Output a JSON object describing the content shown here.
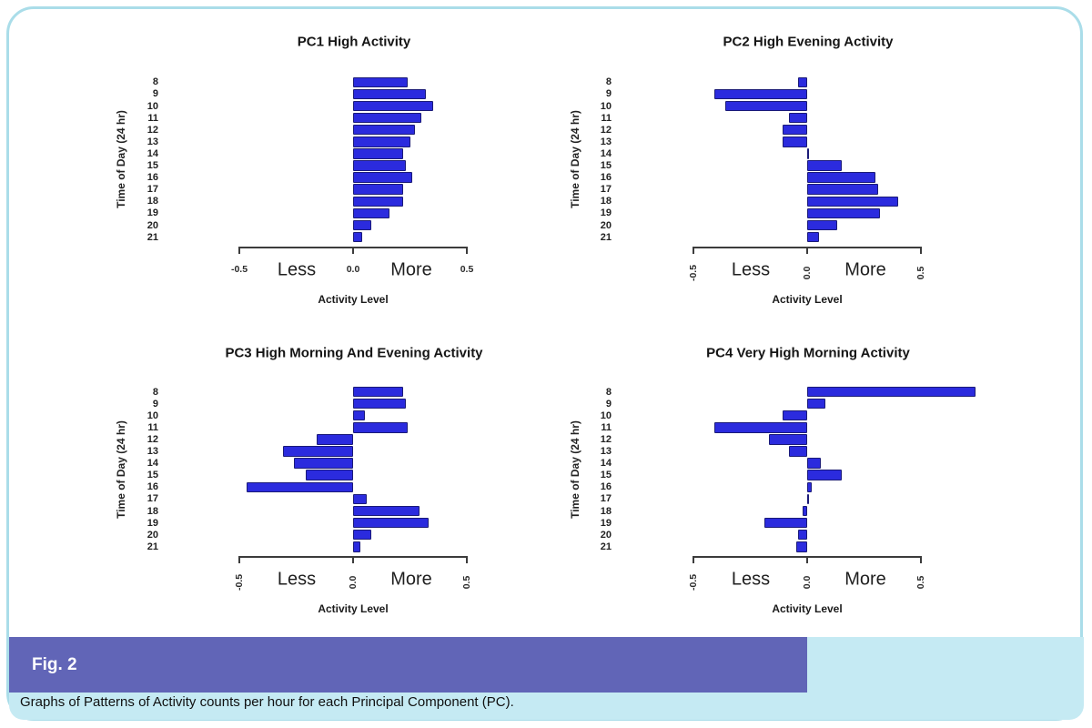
{
  "figure": {
    "fig_label": "Fig. 2",
    "caption": "Graphs of Patterns of Activity counts per hour for each Principal Component (PC).",
    "colors": {
      "bar_fill": "#2b2bde",
      "bar_border": "#1b1b78",
      "frame_border": "#aadde9",
      "caption_band": "#c5eaf3",
      "fig_label_bar": "#6165b7",
      "axis": "#3c3c3c"
    }
  },
  "chart_data": [
    {
      "type": "bar",
      "orientation": "horizontal",
      "title": "PC1 High Activity",
      "ylabel": "Time of Day (24 hr)",
      "xlabel": "Activity Level",
      "categories": [
        "8",
        "9",
        "10",
        "11",
        "12",
        "13",
        "14",
        "15",
        "16",
        "17",
        "18",
        "19",
        "20",
        "21"
      ],
      "values": [
        0.24,
        0.32,
        0.35,
        0.3,
        0.27,
        0.25,
        0.22,
        0.23,
        0.26,
        0.22,
        0.22,
        0.16,
        0.08,
        0.04
      ],
      "xlim": [
        -0.5,
        0.5
      ],
      "xtick_labels": [
        "-0.5",
        "0.0",
        "0.5"
      ],
      "less_label": "Less",
      "more_label": "More",
      "xticks_rotated": false,
      "grid": false
    },
    {
      "type": "bar",
      "orientation": "horizontal",
      "title": "PC2 High Evening Activity",
      "ylabel": "Time of Day (24 hr)",
      "xlabel": "Activity Level",
      "categories": [
        "8",
        "9",
        "10",
        "11",
        "12",
        "13",
        "14",
        "15",
        "16",
        "17",
        "18",
        "19",
        "20",
        "21"
      ],
      "values": [
        -0.04,
        -0.41,
        -0.36,
        -0.08,
        -0.11,
        -0.11,
        0.005,
        0.15,
        0.3,
        0.31,
        0.4,
        0.32,
        0.13,
        0.05
      ],
      "xlim": [
        -0.5,
        0.5
      ],
      "xtick_labels": [
        "-0.5",
        "0.0",
        "0.5"
      ],
      "less_label": "Less",
      "more_label": "More",
      "xticks_rotated": true,
      "grid": false
    },
    {
      "type": "bar",
      "orientation": "horizontal",
      "title": "PC3 High Morning And Evening Activity",
      "ylabel": "Time of Day (24 hr)",
      "xlabel": "Activity Level",
      "categories": [
        "8",
        "9",
        "10",
        "11",
        "12",
        "13",
        "14",
        "15",
        "16",
        "17",
        "18",
        "19",
        "20",
        "21"
      ],
      "values": [
        0.22,
        0.23,
        0.05,
        0.24,
        -0.16,
        -0.31,
        -0.26,
        -0.21,
        -0.47,
        0.06,
        0.29,
        0.33,
        0.08,
        0.03
      ],
      "xlim": [
        -0.5,
        0.5
      ],
      "xtick_labels": [
        "-0.5",
        "0.0",
        "0.5"
      ],
      "less_label": "Less",
      "more_label": "More",
      "xticks_rotated": true,
      "grid": false
    },
    {
      "type": "bar",
      "orientation": "horizontal",
      "title": "PC4 Very High Morning Activity",
      "ylabel": "Time of Day (24 hr)",
      "xlabel": "Activity Level",
      "categories": [
        "8",
        "9",
        "10",
        "11",
        "12",
        "13",
        "14",
        "15",
        "16",
        "17",
        "18",
        "19",
        "20",
        "21"
      ],
      "values": [
        0.74,
        0.08,
        -0.11,
        -0.41,
        -0.17,
        -0.08,
        0.06,
        0.15,
        0.02,
        0.005,
        -0.02,
        -0.19,
        -0.04,
        -0.05
      ],
      "xlim": [
        -0.5,
        0.5
      ],
      "xtick_labels": [
        "-0.5",
        "0.0",
        "0.5"
      ],
      "less_label": "Less",
      "more_label": "More",
      "xticks_rotated": true,
      "grid": false
    }
  ]
}
